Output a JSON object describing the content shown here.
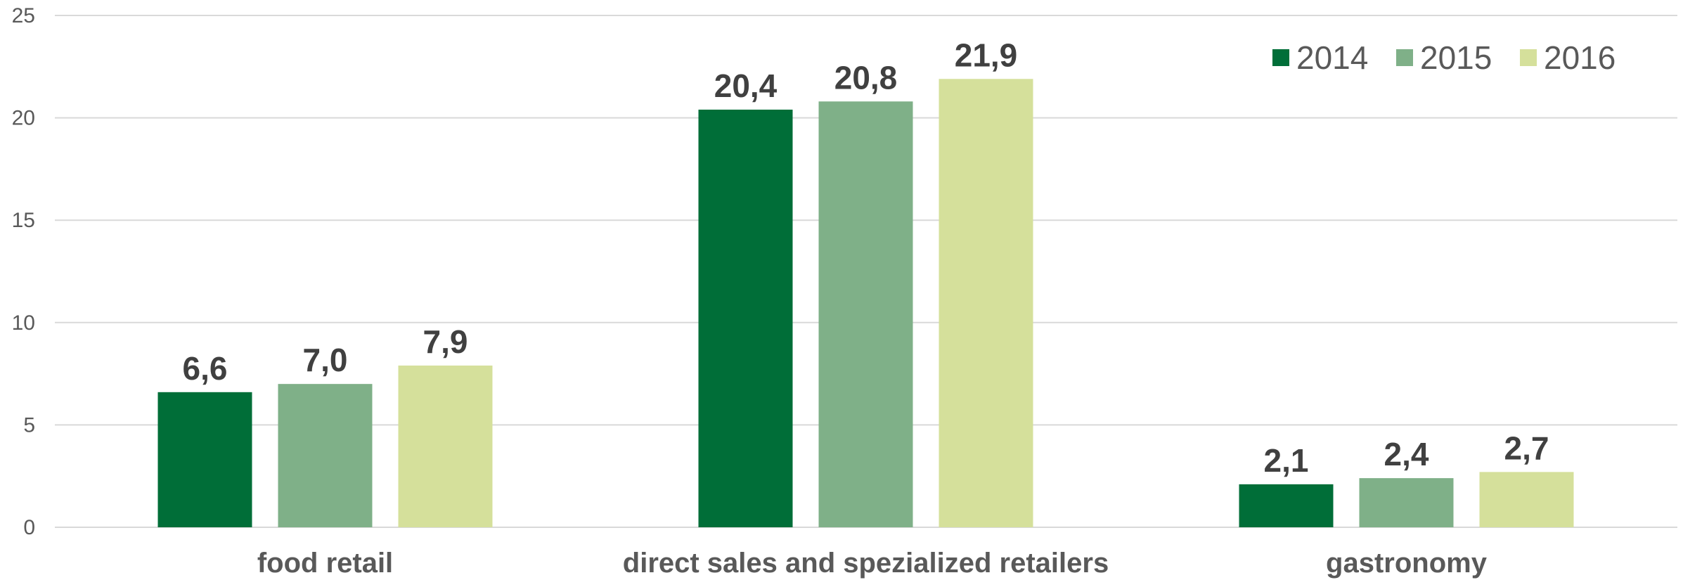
{
  "chart_data": {
    "type": "bar",
    "categories": [
      "food retail",
      "direct sales and spezialized retailers",
      "gastronomy"
    ],
    "series": [
      {
        "name": "2014",
        "values": [
          6.6,
          20.4,
          2.1
        ],
        "labels": [
          "6,6",
          "20,4",
          "2,1"
        ],
        "color": "#006e38"
      },
      {
        "name": "2015",
        "values": [
          7.0,
          20.8,
          2.4
        ],
        "labels": [
          "7,0",
          "20,8",
          "2,4"
        ],
        "color": "#7fb088"
      },
      {
        "name": "2016",
        "values": [
          7.9,
          21.9,
          2.7
        ],
        "labels": [
          "7,9",
          "21,9",
          "2,7"
        ],
        "color": "#d5e09b"
      }
    ],
    "ylim": [
      0,
      25
    ],
    "yticks": [
      0,
      5,
      10,
      15,
      20,
      25
    ],
    "ytick_labels": [
      "0",
      "5",
      "10",
      "15",
      "20",
      "25"
    ],
    "grid": true,
    "legend_position": "top-right",
    "title": "",
    "xlabel": "",
    "ylabel": ""
  }
}
